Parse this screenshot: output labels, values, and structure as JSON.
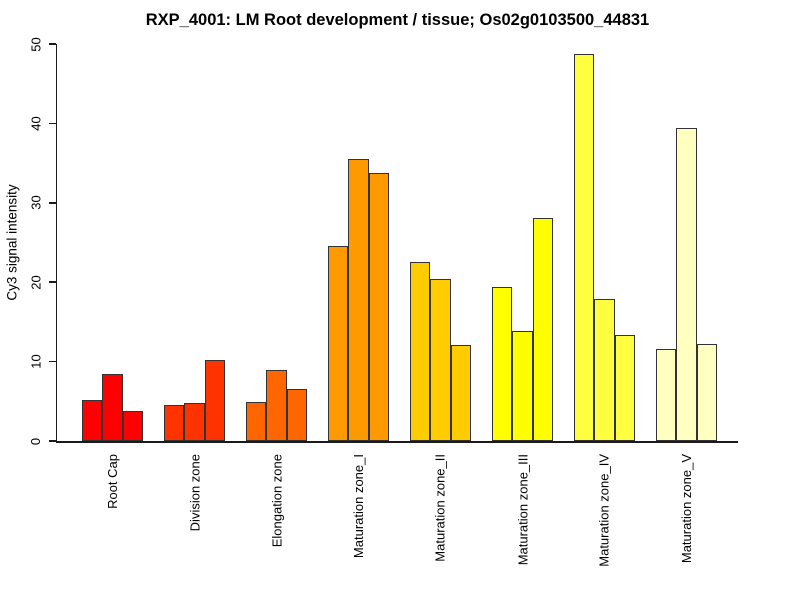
{
  "chart_data": {
    "type": "bar",
    "title": "RXP_4001: LM Root development / tissue; Os02g0103500_44831",
    "ylabel": "Cy3 signal intensity",
    "xlabel": "",
    "ylim": [
      0,
      50
    ],
    "yticks": [
      0,
      10,
      20,
      30,
      40,
      50
    ],
    "grid": false,
    "legend": "none",
    "bars_per_group": 3,
    "categories": [
      "Root Cap",
      "Division zone",
      "Elongation zone",
      "Maturation zone_I",
      "Maturation zone_II",
      "Maturation zone_III",
      "Maturation zone_IV",
      "Maturation zone_V"
    ],
    "values": [
      [
        5.2,
        8.4,
        3.8
      ],
      [
        4.5,
        4.8,
        10.2
      ],
      [
        4.9,
        8.9,
        6.5
      ],
      [
        24.6,
        35.5,
        33.8
      ],
      [
        22.5,
        20.4,
        12.1
      ],
      [
        19.4,
        13.8,
        28.1
      ],
      [
        48.8,
        17.9,
        13.4
      ],
      [
        11.6,
        39.4,
        12.2
      ]
    ],
    "bar_colors": [
      "#FF0000",
      "#FF3300",
      "#FF6600",
      "#FF9900",
      "#FFCC00",
      "#FFFF00",
      "#FFFF40",
      "#FFFFBF"
    ],
    "bar_border_color": "#333333",
    "axis_color": "#1a1a1a",
    "text_color": "#000000",
    "background_color": "#ffffff"
  }
}
